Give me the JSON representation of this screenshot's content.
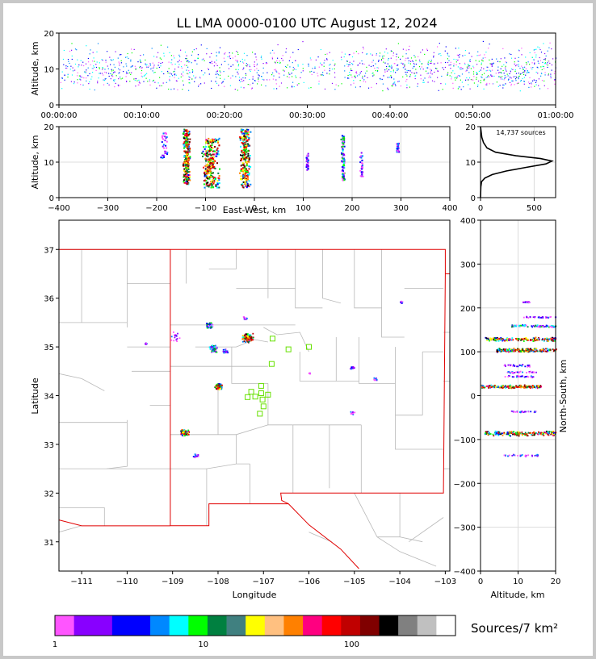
{
  "chart_data": {
    "type": "lightning-mapping-composite",
    "title": "LL LMA 0000-0100 UTC August 12, 2024",
    "time_altitude": {
      "ylabel": "Altitude, km",
      "yticks": [
        "0",
        "10",
        "20"
      ],
      "xticks": [
        "00:00:00",
        "00:10:00",
        "00:20:00",
        "00:30:00",
        "00:40:00",
        "00:50:00",
        "01:00:00"
      ],
      "xlim_minutes": [
        0,
        60
      ],
      "ylim_km": [
        0,
        20
      ],
      "source_band_km": [
        5,
        17
      ]
    },
    "ew_altitude": {
      "xlabel": "East-West, km",
      "ylabel": "Altitude, km",
      "xticks": [
        "−400",
        "−300",
        "−200",
        "−100",
        "0",
        "100",
        "200",
        "300",
        "400"
      ],
      "yticks": [
        "0",
        "10",
        "20"
      ],
      "xlim_km": [
        -400,
        400
      ],
      "ylim_km": [
        0,
        20
      ],
      "clusters": [
        {
          "x": -140,
          "width": 16,
          "alt_lo": 4,
          "alt_hi": 19.5,
          "intensity": "high"
        },
        {
          "x": -185,
          "width": 16,
          "alt_lo": 11,
          "alt_hi": 19,
          "intensity": "low"
        },
        {
          "x": -90,
          "width": 40,
          "alt_lo": 3,
          "alt_hi": 17,
          "intensity": "high"
        },
        {
          "x": -20,
          "width": 24,
          "alt_lo": 3,
          "alt_hi": 19.5,
          "intensity": "high"
        },
        {
          "x": 107,
          "width": 6,
          "alt_lo": 8,
          "alt_hi": 13,
          "intensity": "low"
        },
        {
          "x": 180,
          "width": 8,
          "alt_lo": 5,
          "alt_hi": 18,
          "intensity": "medium"
        },
        {
          "x": 218,
          "width": 6,
          "alt_lo": 6,
          "alt_hi": 13,
          "intensity": "low"
        },
        {
          "x": 292,
          "width": 6,
          "alt_lo": 13,
          "alt_hi": 15.5,
          "intensity": "low"
        }
      ]
    },
    "altitude_histogram": {
      "annotation": "14,737 sources",
      "xticks": [
        "0",
        "500"
      ],
      "yticks": [
        "0",
        "10",
        "20"
      ],
      "xlim": [
        0,
        700
      ],
      "ylim_km": [
        0,
        20
      ],
      "profile": [
        {
          "alt": 0,
          "count": 0
        },
        {
          "alt": 3,
          "count": 3
        },
        {
          "alt": 4.5,
          "count": 10
        },
        {
          "alt": 5.5,
          "count": 40
        },
        {
          "alt": 6.5,
          "count": 110
        },
        {
          "alt": 7.5,
          "count": 240
        },
        {
          "alt": 8.5,
          "count": 420
        },
        {
          "alt": 9.5,
          "count": 610
        },
        {
          "alt": 10.3,
          "count": 665
        },
        {
          "alt": 11,
          "count": 560
        },
        {
          "alt": 11.8,
          "count": 330
        },
        {
          "alt": 12.8,
          "count": 140
        },
        {
          "alt": 14,
          "count": 60
        },
        {
          "alt": 15.5,
          "count": 28
        },
        {
          "alt": 17,
          "count": 12
        },
        {
          "alt": 18.5,
          "count": 6
        },
        {
          "alt": 19.5,
          "count": 2
        },
        {
          "alt": 20,
          "count": 0
        }
      ]
    },
    "plan_view": {
      "xlabel": "Longitude",
      "ylabel": "Latitude",
      "xticks": [
        "−111",
        "−110",
        "−109",
        "−108",
        "−107",
        "−106",
        "−105",
        "−104",
        "−103"
      ],
      "yticks": [
        "31",
        "32",
        "33",
        "34",
        "35",
        "36",
        "37"
      ],
      "xlim": [
        -111.5,
        -102.9
      ],
      "ylim": [
        30.4,
        37.6
      ],
      "clusters": [
        {
          "lon": -108.0,
          "lat": 34.2,
          "r": 0.08,
          "intensity": "high"
        },
        {
          "lon": -108.75,
          "lat": 33.25,
          "r": 0.09,
          "intensity": "high"
        },
        {
          "lon": -107.35,
          "lat": 35.2,
          "r": 0.13,
          "intensity": "high"
        },
        {
          "lon": -108.1,
          "lat": 34.97,
          "r": 0.1,
          "intensity": "medium"
        },
        {
          "lon": -108.2,
          "lat": 35.45,
          "r": 0.08,
          "intensity": "medium"
        },
        {
          "lon": -108.95,
          "lat": 35.22,
          "r": 0.14,
          "intensity": "low"
        },
        {
          "lon": -107.85,
          "lat": 34.92,
          "r": 0.07,
          "intensity": "low"
        },
        {
          "lon": -108.5,
          "lat": 32.78,
          "r": 0.06,
          "intensity": "low"
        },
        {
          "lon": -105.05,
          "lat": 34.58,
          "r": 0.05,
          "intensity": "low"
        },
        {
          "lon": -104.55,
          "lat": 34.35,
          "r": 0.04,
          "intensity": "low"
        },
        {
          "lon": -105.05,
          "lat": 33.65,
          "r": 0.05,
          "intensity": "low"
        },
        {
          "lon": -103.98,
          "lat": 35.93,
          "r": 0.03,
          "intensity": "low"
        },
        {
          "lon": -107.4,
          "lat": 35.6,
          "r": 0.06,
          "intensity": "low"
        },
        {
          "lon": -106.0,
          "lat": 34.47,
          "r": 0.02,
          "intensity": "low"
        },
        {
          "lon": -109.6,
          "lat": 35.08,
          "r": 0.02,
          "intensity": "low"
        }
      ],
      "stations": [
        {
          "lon": -106.8,
          "lat": 35.17
        },
        {
          "lon": -106.45,
          "lat": 34.95
        },
        {
          "lon": -106.0,
          "lat": 35.0
        },
        {
          "lon": -106.82,
          "lat": 34.65
        },
        {
          "lon": -107.05,
          "lat": 34.2
        },
        {
          "lon": -107.05,
          "lat": 34.05
        },
        {
          "lon": -107.27,
          "lat": 34.08
        },
        {
          "lon": -107.35,
          "lat": 33.97
        },
        {
          "lon": -107.18,
          "lat": 33.98
        },
        {
          "lon": -106.9,
          "lat": 34.02
        },
        {
          "lon": -107.02,
          "lat": 33.92
        },
        {
          "lon": -107.0,
          "lat": 33.78
        },
        {
          "lon": -107.08,
          "lat": 33.63
        }
      ]
    },
    "ns_altitude": {
      "xlabel": "Altitude, km",
      "ylabel": "North-South, km",
      "xticks": [
        "0",
        "10",
        "20"
      ],
      "yticks": [
        "−400",
        "−300",
        "−200",
        "−100",
        "0",
        "100",
        "200",
        "300",
        "400"
      ],
      "xlim_km": [
        0,
        20
      ],
      "ylim_km": [
        -400,
        400
      ],
      "bands": [
        {
          "ns": 130,
          "thick": 10,
          "alt_lo": 1,
          "alt_hi": 20,
          "intensity": "high"
        },
        {
          "ns": 105,
          "thick": 10,
          "alt_lo": 4,
          "alt_hi": 20,
          "intensity": "high"
        },
        {
          "ns": -85,
          "thick": 12,
          "alt_lo": 1,
          "alt_hi": 20,
          "intensity": "high"
        },
        {
          "ns": 22,
          "thick": 8,
          "alt_lo": 0,
          "alt_hi": 16,
          "intensity": "high"
        },
        {
          "ns": 160,
          "thick": 6,
          "alt_lo": 8,
          "alt_hi": 20,
          "intensity": "medium"
        },
        {
          "ns": 70,
          "thick": 6,
          "alt_lo": 6,
          "alt_hi": 14,
          "intensity": "low"
        },
        {
          "ns": 55,
          "thick": 5,
          "alt_lo": 7,
          "alt_hi": 15,
          "intensity": "low"
        },
        {
          "ns": 45,
          "thick": 5,
          "alt_lo": 6,
          "alt_hi": 14,
          "intensity": "low"
        },
        {
          "ns": -35,
          "thick": 4,
          "alt_lo": 8,
          "alt_hi": 15,
          "intensity": "low"
        },
        {
          "ns": -135,
          "thick": 5,
          "alt_lo": 6,
          "alt_hi": 16,
          "intensity": "low"
        },
        {
          "ns": 215,
          "thick": 3,
          "alt_lo": 11,
          "alt_hi": 13,
          "intensity": "low"
        },
        {
          "ns": 180,
          "thick": 4,
          "alt_lo": 11,
          "alt_hi": 20,
          "intensity": "low"
        }
      ]
    },
    "colorbar": {
      "label": "Sources/7 km²",
      "ticks": [
        "1",
        "10",
        "100"
      ],
      "colors": [
        "#ff55ff",
        "#8800ff",
        "#8800ff",
        "#0000ff",
        "#0000ff",
        "#0088ff",
        "#00ffff",
        "#00ff00",
        "#008040",
        "#408080",
        "#ffff00",
        "#ffc080",
        "#ff8000",
        "#ff0080",
        "#ff0000",
        "#c00000",
        "#800000",
        "#000000",
        "#808080",
        "#c0c0c0",
        "#ffffff"
      ]
    }
  }
}
